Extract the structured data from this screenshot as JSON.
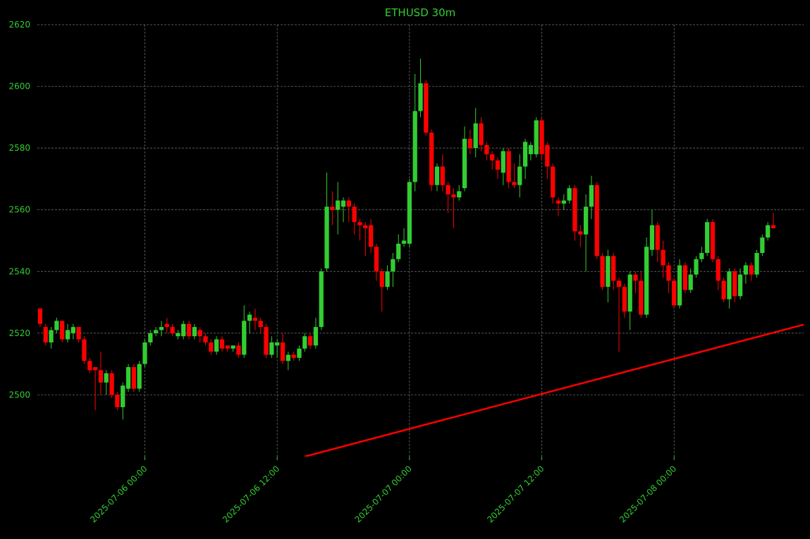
{
  "chart_data": {
    "type": "candlestick",
    "title": "ETHUSD 30m",
    "x": [
      "2025-07-05 14:30",
      "2025-07-05 15:00",
      "2025-07-05 15:30",
      "2025-07-05 16:00",
      "2025-07-05 16:30",
      "2025-07-05 17:00",
      "2025-07-05 17:30",
      "2025-07-05 18:00",
      "2025-07-05 18:30",
      "2025-07-05 19:00",
      "2025-07-05 19:30",
      "2025-07-05 20:00",
      "2025-07-05 20:30",
      "2025-07-05 21:00",
      "2025-07-05 21:30",
      "2025-07-05 22:00",
      "2025-07-05 22:30",
      "2025-07-05 23:00",
      "2025-07-05 23:30",
      "2025-07-06 00:00",
      "2025-07-06 00:30",
      "2025-07-06 01:00",
      "2025-07-06 01:30",
      "2025-07-06 02:00",
      "2025-07-06 02:30",
      "2025-07-06 03:00",
      "2025-07-06 03:30",
      "2025-07-06 04:00",
      "2025-07-06 04:30",
      "2025-07-06 05:00",
      "2025-07-06 05:30",
      "2025-07-06 06:00",
      "2025-07-06 06:30",
      "2025-07-06 07:00",
      "2025-07-06 07:30",
      "2025-07-06 08:00",
      "2025-07-06 08:30",
      "2025-07-06 09:00",
      "2025-07-06 09:30",
      "2025-07-06 10:00",
      "2025-07-06 10:30",
      "2025-07-06 11:00",
      "2025-07-06 11:30",
      "2025-07-06 12:00",
      "2025-07-06 12:30",
      "2025-07-06 13:00",
      "2025-07-06 13:30",
      "2025-07-06 14:00",
      "2025-07-06 14:30",
      "2025-07-06 15:00",
      "2025-07-06 15:30",
      "2025-07-06 16:00",
      "2025-07-06 16:30",
      "2025-07-06 17:00",
      "2025-07-06 17:30",
      "2025-07-06 18:00",
      "2025-07-06 18:30",
      "2025-07-06 19:00",
      "2025-07-06 19:30",
      "2025-07-06 20:00",
      "2025-07-06 20:30",
      "2025-07-06 21:00",
      "2025-07-06 21:30",
      "2025-07-06 22:00",
      "2025-07-06 22:30",
      "2025-07-06 23:00",
      "2025-07-06 23:30",
      "2025-07-07 00:00",
      "2025-07-07 00:30",
      "2025-07-07 01:00",
      "2025-07-07 01:30",
      "2025-07-07 02:00",
      "2025-07-07 02:30",
      "2025-07-07 03:00",
      "2025-07-07 03:30",
      "2025-07-07 04:00",
      "2025-07-07 04:30",
      "2025-07-07 05:00",
      "2025-07-07 05:30",
      "2025-07-07 06:00",
      "2025-07-07 06:30",
      "2025-07-07 07:00",
      "2025-07-07 07:30",
      "2025-07-07 08:00",
      "2025-07-07 08:30",
      "2025-07-07 09:00",
      "2025-07-07 09:30",
      "2025-07-07 10:00",
      "2025-07-07 10:30",
      "2025-07-07 11:00",
      "2025-07-07 11:30",
      "2025-07-07 12:00",
      "2025-07-07 12:30",
      "2025-07-07 13:00",
      "2025-07-07 13:30",
      "2025-07-07 14:00",
      "2025-07-07 14:30",
      "2025-07-07 15:00",
      "2025-07-07 15:30",
      "2025-07-07 16:00",
      "2025-07-07 16:30",
      "2025-07-07 17:00",
      "2025-07-07 17:30",
      "2025-07-07 18:00",
      "2025-07-07 18:30",
      "2025-07-07 19:00",
      "2025-07-07 19:30",
      "2025-07-07 20:00",
      "2025-07-07 20:30",
      "2025-07-07 21:00",
      "2025-07-07 21:30",
      "2025-07-07 22:00",
      "2025-07-07 22:30",
      "2025-07-07 23:00",
      "2025-07-07 23:30",
      "2025-07-08 00:00",
      "2025-07-08 00:30",
      "2025-07-08 01:00",
      "2025-07-08 01:30",
      "2025-07-08 02:00",
      "2025-07-08 02:30",
      "2025-07-08 03:00",
      "2025-07-08 03:30",
      "2025-07-08 04:00",
      "2025-07-08 04:30",
      "2025-07-08 05:00",
      "2025-07-08 05:30",
      "2025-07-08 06:00",
      "2025-07-08 06:30",
      "2025-07-08 07:00",
      "2025-07-08 07:30",
      "2025-07-08 08:00",
      "2025-07-08 08:30",
      "2025-07-08 09:00"
    ],
    "open": [
      2528,
      2522,
      2517,
      2521,
      2524,
      2518,
      2520,
      2522,
      2518,
      2511,
      2509,
      2508,
      2504,
      2507,
      2500,
      2496,
      2502,
      2509,
      2502,
      2510,
      2517,
      2520,
      2521,
      2523,
      2522,
      2519,
      2519,
      2523,
      2519,
      2521,
      2519,
      2517,
      2514,
      2518,
      2516,
      2515,
      2516,
      2513,
      2524,
      2525,
      2524,
      2522,
      2513,
      2516,
      2517,
      2511,
      2513,
      2512,
      2515,
      2519,
      2516,
      2522,
      2541,
      2561,
      2560,
      2561,
      2563,
      2561,
      2556,
      2555,
      2555,
      2548,
      2540,
      2535,
      2540,
      2544,
      2549,
      2549,
      2569,
      2592,
      2601,
      2585,
      2568,
      2574,
      2568,
      2565,
      2564,
      2567,
      2583,
      2580,
      2588,
      2581,
      2578,
      2576,
      2572,
      2579,
      2569,
      2568,
      2574,
      2578,
      2578,
      2589,
      2581,
      2574,
      2563,
      2562,
      2563,
      2567,
      2553,
      2552,
      2561,
      2568,
      2545,
      2535,
      2545,
      2537,
      2535,
      2527,
      2539,
      2537,
      2526,
      2547,
      2555,
      2547,
      2542,
      2537,
      2529,
      2542,
      2534,
      2539,
      2544,
      2546,
      2556,
      2544,
      2537,
      2531,
      2540,
      2532,
      2539,
      2542,
      2539,
      2546,
      2551,
      2555
    ],
    "high": [
      2528,
      2523,
      2522,
      2525,
      2524,
      2523,
      2523,
      2522,
      2519,
      2512,
      2509,
      2514,
      2508,
      2508,
      2501,
      2504,
      2510,
      2510,
      2511,
      2518,
      2521,
      2522,
      2524,
      2525,
      2523,
      2521,
      2524,
      2524,
      2523,
      2522,
      2520,
      2518,
      2519,
      2519,
      2516,
      2516,
      2517,
      2529,
      2527,
      2528,
      2525,
      2523,
      2519,
      2518,
      2520,
      2514,
      2514,
      2516,
      2520,
      2520,
      2525,
      2541,
      2572,
      2566,
      2569,
      2564,
      2564,
      2562,
      2557,
      2556,
      2557,
      2549,
      2541,
      2542,
      2546,
      2552,
      2554,
      2570,
      2604,
      2609,
      2602,
      2586,
      2575,
      2578,
      2569,
      2567,
      2568,
      2587,
      2586,
      2593,
      2590,
      2582,
      2579,
      2577,
      2580,
      2580,
      2575,
      2578,
      2583,
      2582,
      2590,
      2590,
      2582,
      2575,
      2564,
      2565,
      2568,
      2568,
      2555,
      2565,
      2571,
      2569,
      2546,
      2547,
      2546,
      2538,
      2536,
      2540,
      2540,
      2540,
      2551,
      2560,
      2556,
      2550,
      2543,
      2538,
      2544,
      2543,
      2541,
      2545,
      2548,
      2557,
      2557,
      2545,
      2538,
      2541,
      2541,
      2541,
      2543,
      2543,
      2547,
      2552,
      2556,
      2559
    ],
    "low": [
      2522,
      2516,
      2515,
      2520,
      2517,
      2517,
      2518,
      2517,
      2510,
      2507,
      2495,
      2500,
      2500,
      2499,
      2495,
      2492,
      2501,
      2501,
      2501,
      2509,
      2516,
      2519,
      2519,
      2520,
      2519,
      2518,
      2518,
      2518,
      2518,
      2517,
      2516,
      2513,
      2513,
      2514,
      2514,
      2514,
      2512,
      2512,
      2520,
      2521,
      2520,
      2512,
      2512,
      2512,
      2510,
      2508,
      2511,
      2511,
      2514,
      2515,
      2515,
      2521,
      2540,
      2555,
      2552,
      2556,
      2556,
      2552,
      2550,
      2545,
      2546,
      2537,
      2527,
      2534,
      2535,
      2543,
      2548,
      2548,
      2566,
      2590,
      2584,
      2566,
      2566,
      2566,
      2559,
      2554,
      2563,
      2566,
      2578,
      2577,
      2579,
      2576,
      2573,
      2570,
      2568,
      2567,
      2567,
      2564,
      2570,
      2576,
      2577,
      2576,
      2570,
      2562,
      2558,
      2560,
      2562,
      2550,
      2548,
      2540,
      2557,
      2544,
      2534,
      2530,
      2534,
      2514,
      2525,
      2521,
      2533,
      2525,
      2525,
      2545,
      2543,
      2538,
      2533,
      2528,
      2528,
      2533,
      2533,
      2538,
      2543,
      2545,
      2543,
      2534,
      2530,
      2528,
      2530,
      2531,
      2536,
      2537,
      2538,
      2545,
      2550,
      2554
    ],
    "close": [
      2523,
      2517,
      2521,
      2524,
      2518,
      2521,
      2522,
      2518,
      2511,
      2508,
      2508,
      2504,
      2507,
      2500,
      2496,
      2503,
      2509,
      2502,
      2510,
      2517,
      2520,
      2521,
      2522,
      2522,
      2520,
      2520,
      2523,
      2519,
      2522,
      2519,
      2517,
      2514,
      2518,
      2515,
      2515,
      2516,
      2513,
      2524,
      2526,
      2524,
      2522,
      2513,
      2517,
      2517,
      2511,
      2513,
      2512,
      2515,
      2519,
      2516,
      2522,
      2540,
      2561,
      2560,
      2563,
      2563,
      2561,
      2556,
      2555,
      2554,
      2548,
      2540,
      2535,
      2540,
      2544,
      2549,
      2550,
      2569,
      2592,
      2601,
      2585,
      2568,
      2574,
      2568,
      2565,
      2564,
      2566,
      2583,
      2580,
      2588,
      2581,
      2578,
      2576,
      2573,
      2579,
      2569,
      2568,
      2574,
      2582,
      2581,
      2589,
      2578,
      2574,
      2564,
      2562,
      2563,
      2567,
      2553,
      2552,
      2561,
      2568,
      2545,
      2535,
      2545,
      2537,
      2535,
      2527,
      2539,
      2537,
      2526,
      2548,
      2555,
      2547,
      2542,
      2537,
      2529,
      2542,
      2534,
      2539,
      2544,
      2546,
      2556,
      2544,
      2537,
      2531,
      2540,
      2532,
      2539,
      2542,
      2539,
      2546,
      2551,
      2555,
      2554
    ],
    "up_color": "#32cd32",
    "down_color": "#ff0000",
    "trendline": {
      "x": [
        "2025-07-06 14:30",
        "2025-07-08 12:00"
      ],
      "values": [
        2480,
        2523
      ],
      "color": "#ff0000"
    },
    "xlim": [
      "2025-07-05 14:15",
      "2025-07-08 11:45"
    ],
    "xticks": [
      "2025-07-06 00:00",
      "2025-07-06 12:00",
      "2025-07-07 00:00",
      "2025-07-07 12:00",
      "2025-07-08 00:00"
    ],
    "ylim": [
      2480,
      2620
    ],
    "yticks": [
      2500,
      2520,
      2540,
      2560,
      2580,
      2600,
      2620
    ],
    "grid": true
  }
}
